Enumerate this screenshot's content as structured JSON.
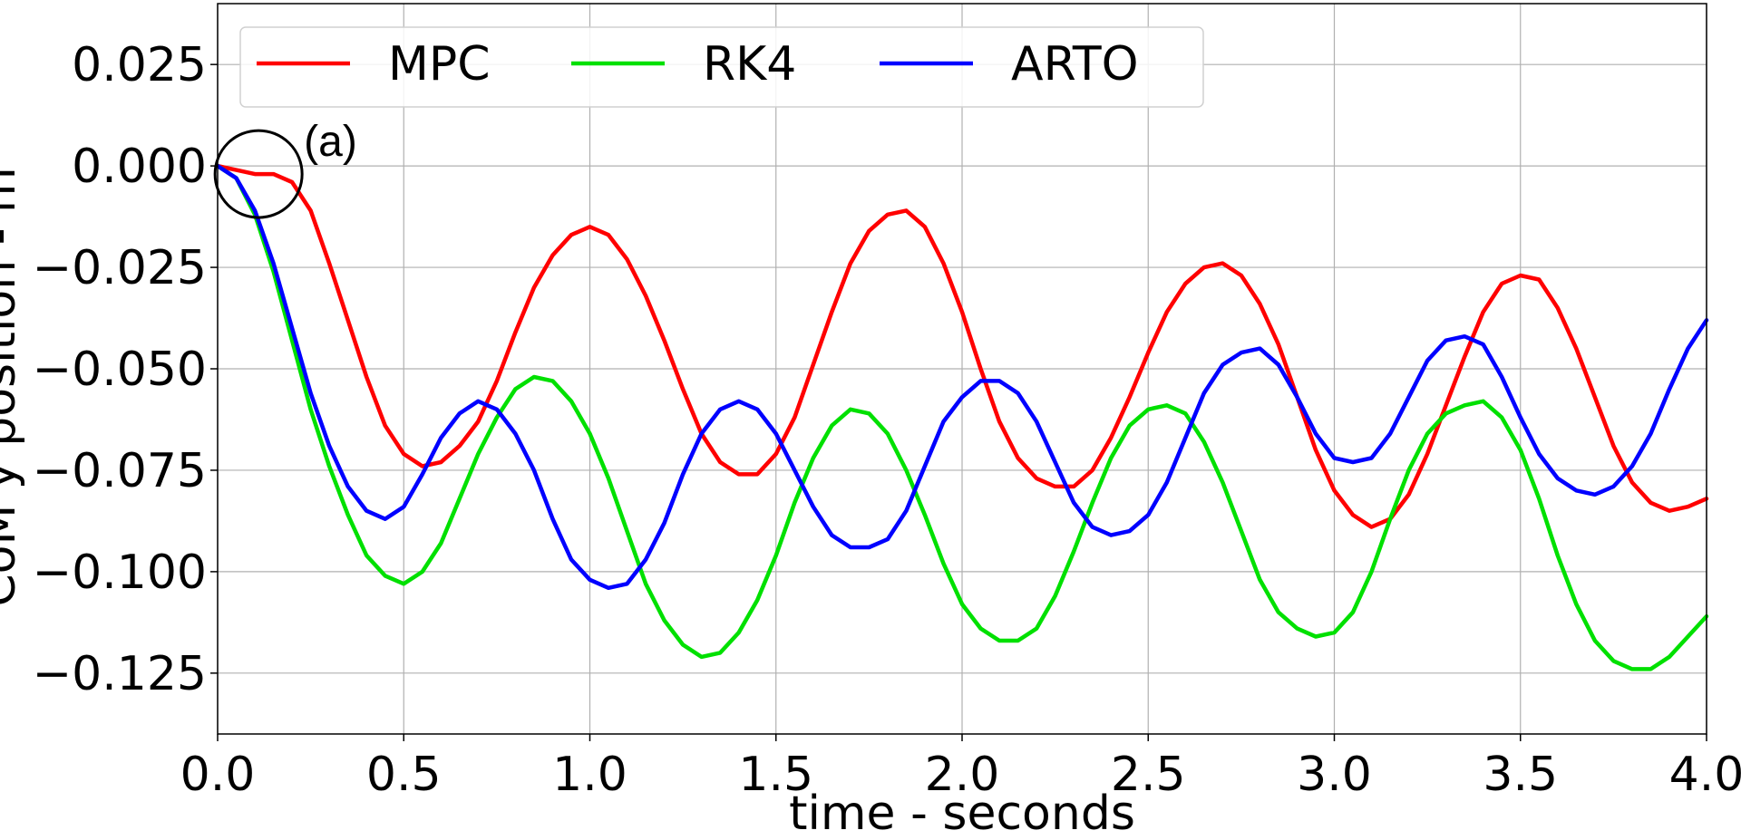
{
  "chart_data": {
    "type": "line",
    "xlabel": "time - seconds",
    "ylabel": "CoM y position - m",
    "xlim": [
      0.0,
      4.0
    ],
    "ylim": [
      -0.14,
      0.04
    ],
    "x_ticks": [
      "0.0",
      "0.5",
      "1.0",
      "1.5",
      "2.0",
      "2.5",
      "3.0",
      "3.5",
      "4.0"
    ],
    "y_ticks": [
      "0.025",
      "0.000",
      "−0.025",
      "−0.050",
      "−0.075",
      "−0.100",
      "−0.125"
    ],
    "grid": true,
    "legend_placement": "top-left, horizontal",
    "series": [
      {
        "name": "MPC",
        "color": "#ff0000",
        "points": [
          [
            0.0,
            0.0
          ],
          [
            0.05,
            -0.001
          ],
          [
            0.1,
            -0.002
          ],
          [
            0.15,
            -0.002
          ],
          [
            0.2,
            -0.004
          ],
          [
            0.25,
            -0.011
          ],
          [
            0.3,
            -0.024
          ],
          [
            0.35,
            -0.038
          ],
          [
            0.4,
            -0.052
          ],
          [
            0.45,
            -0.064
          ],
          [
            0.5,
            -0.071
          ],
          [
            0.55,
            -0.074
          ],
          [
            0.6,
            -0.073
          ],
          [
            0.65,
            -0.069
          ],
          [
            0.7,
            -0.063
          ],
          [
            0.75,
            -0.053
          ],
          [
            0.8,
            -0.041
          ],
          [
            0.85,
            -0.03
          ],
          [
            0.9,
            -0.022
          ],
          [
            0.95,
            -0.017
          ],
          [
            1.0,
            -0.015
          ],
          [
            1.05,
            -0.017
          ],
          [
            1.1,
            -0.023
          ],
          [
            1.15,
            -0.032
          ],
          [
            1.2,
            -0.043
          ],
          [
            1.25,
            -0.055
          ],
          [
            1.3,
            -0.066
          ],
          [
            1.35,
            -0.073
          ],
          [
            1.4,
            -0.076
          ],
          [
            1.45,
            -0.076
          ],
          [
            1.5,
            -0.071
          ],
          [
            1.55,
            -0.062
          ],
          [
            1.6,
            -0.049
          ],
          [
            1.65,
            -0.036
          ],
          [
            1.7,
            -0.024
          ],
          [
            1.75,
            -0.016
          ],
          [
            1.8,
            -0.012
          ],
          [
            1.85,
            -0.011
          ],
          [
            1.9,
            -0.015
          ],
          [
            1.95,
            -0.024
          ],
          [
            2.0,
            -0.036
          ],
          [
            2.05,
            -0.05
          ],
          [
            2.1,
            -0.063
          ],
          [
            2.15,
            -0.072
          ],
          [
            2.2,
            -0.077
          ],
          [
            2.25,
            -0.079
          ],
          [
            2.3,
            -0.079
          ],
          [
            2.35,
            -0.075
          ],
          [
            2.4,
            -0.067
          ],
          [
            2.45,
            -0.057
          ],
          [
            2.5,
            -0.046
          ],
          [
            2.55,
            -0.036
          ],
          [
            2.6,
            -0.029
          ],
          [
            2.65,
            -0.025
          ],
          [
            2.7,
            -0.024
          ],
          [
            2.75,
            -0.027
          ],
          [
            2.8,
            -0.034
          ],
          [
            2.85,
            -0.044
          ],
          [
            2.9,
            -0.057
          ],
          [
            2.95,
            -0.07
          ],
          [
            3.0,
            -0.08
          ],
          [
            3.05,
            -0.086
          ],
          [
            3.1,
            -0.089
          ],
          [
            3.15,
            -0.087
          ],
          [
            3.2,
            -0.081
          ],
          [
            3.25,
            -0.071
          ],
          [
            3.3,
            -0.059
          ],
          [
            3.35,
            -0.047
          ],
          [
            3.4,
            -0.036
          ],
          [
            3.45,
            -0.029
          ],
          [
            3.5,
            -0.027
          ],
          [
            3.55,
            -0.028
          ],
          [
            3.6,
            -0.035
          ],
          [
            3.65,
            -0.045
          ],
          [
            3.7,
            -0.057
          ],
          [
            3.75,
            -0.069
          ],
          [
            3.8,
            -0.078
          ],
          [
            3.85,
            -0.083
          ],
          [
            3.9,
            -0.085
          ],
          [
            3.95,
            -0.084
          ],
          [
            4.0,
            -0.082
          ]
        ]
      },
      {
        "name": "RK4",
        "color": "#00e000",
        "points": [
          [
            0.0,
            0.0
          ],
          [
            0.05,
            -0.003
          ],
          [
            0.1,
            -0.012
          ],
          [
            0.15,
            -0.026
          ],
          [
            0.2,
            -0.043
          ],
          [
            0.25,
            -0.06
          ],
          [
            0.3,
            -0.074
          ],
          [
            0.35,
            -0.086
          ],
          [
            0.4,
            -0.096
          ],
          [
            0.45,
            -0.101
          ],
          [
            0.5,
            -0.103
          ],
          [
            0.55,
            -0.1
          ],
          [
            0.6,
            -0.093
          ],
          [
            0.65,
            -0.082
          ],
          [
            0.7,
            -0.071
          ],
          [
            0.75,
            -0.062
          ],
          [
            0.8,
            -0.055
          ],
          [
            0.85,
            -0.052
          ],
          [
            0.9,
            -0.053
          ],
          [
            0.95,
            -0.058
          ],
          [
            1.0,
            -0.066
          ],
          [
            1.05,
            -0.077
          ],
          [
            1.1,
            -0.09
          ],
          [
            1.15,
            -0.103
          ],
          [
            1.2,
            -0.112
          ],
          [
            1.25,
            -0.118
          ],
          [
            1.3,
            -0.121
          ],
          [
            1.35,
            -0.12
          ],
          [
            1.4,
            -0.115
          ],
          [
            1.45,
            -0.107
          ],
          [
            1.5,
            -0.096
          ],
          [
            1.55,
            -0.083
          ],
          [
            1.6,
            -0.072
          ],
          [
            1.65,
            -0.064
          ],
          [
            1.7,
            -0.06
          ],
          [
            1.75,
            -0.061
          ],
          [
            1.8,
            -0.066
          ],
          [
            1.85,
            -0.075
          ],
          [
            1.9,
            -0.086
          ],
          [
            1.95,
            -0.098
          ],
          [
            2.0,
            -0.108
          ],
          [
            2.05,
            -0.114
          ],
          [
            2.1,
            -0.117
          ],
          [
            2.15,
            -0.117
          ],
          [
            2.2,
            -0.114
          ],
          [
            2.25,
            -0.106
          ],
          [
            2.3,
            -0.095
          ],
          [
            2.35,
            -0.083
          ],
          [
            2.4,
            -0.072
          ],
          [
            2.45,
            -0.064
          ],
          [
            2.5,
            -0.06
          ],
          [
            2.55,
            -0.059
          ],
          [
            2.6,
            -0.061
          ],
          [
            2.65,
            -0.068
          ],
          [
            2.7,
            -0.078
          ],
          [
            2.75,
            -0.09
          ],
          [
            2.8,
            -0.102
          ],
          [
            2.85,
            -0.11
          ],
          [
            2.9,
            -0.114
          ],
          [
            2.95,
            -0.116
          ],
          [
            3.0,
            -0.115
          ],
          [
            3.05,
            -0.11
          ],
          [
            3.1,
            -0.1
          ],
          [
            3.15,
            -0.087
          ],
          [
            3.2,
            -0.075
          ],
          [
            3.25,
            -0.066
          ],
          [
            3.3,
            -0.061
          ],
          [
            3.35,
            -0.059
          ],
          [
            3.4,
            -0.058
          ],
          [
            3.45,
            -0.062
          ],
          [
            3.5,
            -0.07
          ],
          [
            3.55,
            -0.082
          ],
          [
            3.6,
            -0.096
          ],
          [
            3.65,
            -0.108
          ],
          [
            3.7,
            -0.117
          ],
          [
            3.75,
            -0.122
          ],
          [
            3.8,
            -0.124
          ],
          [
            3.85,
            -0.124
          ],
          [
            3.9,
            -0.121
          ],
          [
            3.95,
            -0.116
          ],
          [
            4.0,
            -0.111
          ]
        ]
      },
      {
        "name": "ARTO",
        "color": "#0000ff",
        "points": [
          [
            0.0,
            0.0
          ],
          [
            0.05,
            -0.003
          ],
          [
            0.1,
            -0.011
          ],
          [
            0.15,
            -0.024
          ],
          [
            0.2,
            -0.04
          ],
          [
            0.25,
            -0.056
          ],
          [
            0.3,
            -0.069
          ],
          [
            0.35,
            -0.079
          ],
          [
            0.4,
            -0.085
          ],
          [
            0.45,
            -0.087
          ],
          [
            0.5,
            -0.084
          ],
          [
            0.55,
            -0.076
          ],
          [
            0.6,
            -0.067
          ],
          [
            0.65,
            -0.061
          ],
          [
            0.7,
            -0.058
          ],
          [
            0.75,
            -0.06
          ],
          [
            0.8,
            -0.066
          ],
          [
            0.85,
            -0.075
          ],
          [
            0.9,
            -0.087
          ],
          [
            0.95,
            -0.097
          ],
          [
            1.0,
            -0.102
          ],
          [
            1.05,
            -0.104
          ],
          [
            1.1,
            -0.103
          ],
          [
            1.15,
            -0.097
          ],
          [
            1.2,
            -0.088
          ],
          [
            1.25,
            -0.076
          ],
          [
            1.3,
            -0.066
          ],
          [
            1.35,
            -0.06
          ],
          [
            1.4,
            -0.058
          ],
          [
            1.45,
            -0.06
          ],
          [
            1.5,
            -0.066
          ],
          [
            1.55,
            -0.075
          ],
          [
            1.6,
            -0.084
          ],
          [
            1.65,
            -0.091
          ],
          [
            1.7,
            -0.094
          ],
          [
            1.75,
            -0.094
          ],
          [
            1.8,
            -0.092
          ],
          [
            1.85,
            -0.085
          ],
          [
            1.9,
            -0.074
          ],
          [
            1.95,
            -0.063
          ],
          [
            2.0,
            -0.057
          ],
          [
            2.05,
            -0.053
          ],
          [
            2.1,
            -0.053
          ],
          [
            2.15,
            -0.056
          ],
          [
            2.2,
            -0.063
          ],
          [
            2.25,
            -0.073
          ],
          [
            2.3,
            -0.083
          ],
          [
            2.35,
            -0.089
          ],
          [
            2.4,
            -0.091
          ],
          [
            2.45,
            -0.09
          ],
          [
            2.5,
            -0.086
          ],
          [
            2.55,
            -0.078
          ],
          [
            2.6,
            -0.067
          ],
          [
            2.65,
            -0.056
          ],
          [
            2.7,
            -0.049
          ],
          [
            2.75,
            -0.046
          ],
          [
            2.8,
            -0.045
          ],
          [
            2.85,
            -0.049
          ],
          [
            2.9,
            -0.057
          ],
          [
            2.95,
            -0.066
          ],
          [
            3.0,
            -0.072
          ],
          [
            3.05,
            -0.073
          ],
          [
            3.1,
            -0.072
          ],
          [
            3.15,
            -0.066
          ],
          [
            3.2,
            -0.057
          ],
          [
            3.25,
            -0.048
          ],
          [
            3.3,
            -0.043
          ],
          [
            3.35,
            -0.042
          ],
          [
            3.4,
            -0.044
          ],
          [
            3.45,
            -0.052
          ],
          [
            3.5,
            -0.062
          ],
          [
            3.55,
            -0.071
          ],
          [
            3.6,
            -0.077
          ],
          [
            3.65,
            -0.08
          ],
          [
            3.7,
            -0.081
          ],
          [
            3.75,
            -0.079
          ],
          [
            3.8,
            -0.074
          ],
          [
            3.85,
            -0.066
          ],
          [
            3.9,
            -0.055
          ],
          [
            3.95,
            -0.045
          ],
          [
            4.0,
            -0.038
          ]
        ]
      }
    ],
    "annotations": [
      {
        "text": "(a)",
        "shape": "circle",
        "x": 0.11,
        "y": -0.002
      }
    ]
  }
}
